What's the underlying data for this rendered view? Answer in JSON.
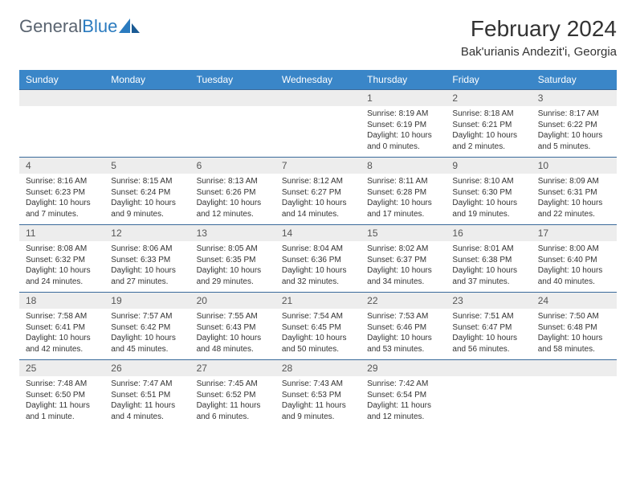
{
  "logo": {
    "text_gray": "General",
    "text_blue": "Blue"
  },
  "title": "February 2024",
  "location": "Bak'urianis Andezit'i, Georgia",
  "weekdays": [
    "Sunday",
    "Monday",
    "Tuesday",
    "Wednesday",
    "Thursday",
    "Friday",
    "Saturday"
  ],
  "colors": {
    "header_bg": "#3a86c8",
    "header_text": "#ffffff",
    "daynum_bg": "#ededed",
    "week_border": "#3a6a9a",
    "logo_gray": "#5a6470",
    "logo_blue": "#2b7bbf"
  },
  "weeks": [
    [
      {
        "num": "",
        "lines": []
      },
      {
        "num": "",
        "lines": []
      },
      {
        "num": "",
        "lines": []
      },
      {
        "num": "",
        "lines": []
      },
      {
        "num": "1",
        "lines": [
          "Sunrise: 8:19 AM",
          "Sunset: 6:19 PM",
          "Daylight: 10 hours",
          "and 0 minutes."
        ]
      },
      {
        "num": "2",
        "lines": [
          "Sunrise: 8:18 AM",
          "Sunset: 6:21 PM",
          "Daylight: 10 hours",
          "and 2 minutes."
        ]
      },
      {
        "num": "3",
        "lines": [
          "Sunrise: 8:17 AM",
          "Sunset: 6:22 PM",
          "Daylight: 10 hours",
          "and 5 minutes."
        ]
      }
    ],
    [
      {
        "num": "4",
        "lines": [
          "Sunrise: 8:16 AM",
          "Sunset: 6:23 PM",
          "Daylight: 10 hours",
          "and 7 minutes."
        ]
      },
      {
        "num": "5",
        "lines": [
          "Sunrise: 8:15 AM",
          "Sunset: 6:24 PM",
          "Daylight: 10 hours",
          "and 9 minutes."
        ]
      },
      {
        "num": "6",
        "lines": [
          "Sunrise: 8:13 AM",
          "Sunset: 6:26 PM",
          "Daylight: 10 hours",
          "and 12 minutes."
        ]
      },
      {
        "num": "7",
        "lines": [
          "Sunrise: 8:12 AM",
          "Sunset: 6:27 PM",
          "Daylight: 10 hours",
          "and 14 minutes."
        ]
      },
      {
        "num": "8",
        "lines": [
          "Sunrise: 8:11 AM",
          "Sunset: 6:28 PM",
          "Daylight: 10 hours",
          "and 17 minutes."
        ]
      },
      {
        "num": "9",
        "lines": [
          "Sunrise: 8:10 AM",
          "Sunset: 6:30 PM",
          "Daylight: 10 hours",
          "and 19 minutes."
        ]
      },
      {
        "num": "10",
        "lines": [
          "Sunrise: 8:09 AM",
          "Sunset: 6:31 PM",
          "Daylight: 10 hours",
          "and 22 minutes."
        ]
      }
    ],
    [
      {
        "num": "11",
        "lines": [
          "Sunrise: 8:08 AM",
          "Sunset: 6:32 PM",
          "Daylight: 10 hours",
          "and 24 minutes."
        ]
      },
      {
        "num": "12",
        "lines": [
          "Sunrise: 8:06 AM",
          "Sunset: 6:33 PM",
          "Daylight: 10 hours",
          "and 27 minutes."
        ]
      },
      {
        "num": "13",
        "lines": [
          "Sunrise: 8:05 AM",
          "Sunset: 6:35 PM",
          "Daylight: 10 hours",
          "and 29 minutes."
        ]
      },
      {
        "num": "14",
        "lines": [
          "Sunrise: 8:04 AM",
          "Sunset: 6:36 PM",
          "Daylight: 10 hours",
          "and 32 minutes."
        ]
      },
      {
        "num": "15",
        "lines": [
          "Sunrise: 8:02 AM",
          "Sunset: 6:37 PM",
          "Daylight: 10 hours",
          "and 34 minutes."
        ]
      },
      {
        "num": "16",
        "lines": [
          "Sunrise: 8:01 AM",
          "Sunset: 6:38 PM",
          "Daylight: 10 hours",
          "and 37 minutes."
        ]
      },
      {
        "num": "17",
        "lines": [
          "Sunrise: 8:00 AM",
          "Sunset: 6:40 PM",
          "Daylight: 10 hours",
          "and 40 minutes."
        ]
      }
    ],
    [
      {
        "num": "18",
        "lines": [
          "Sunrise: 7:58 AM",
          "Sunset: 6:41 PM",
          "Daylight: 10 hours",
          "and 42 minutes."
        ]
      },
      {
        "num": "19",
        "lines": [
          "Sunrise: 7:57 AM",
          "Sunset: 6:42 PM",
          "Daylight: 10 hours",
          "and 45 minutes."
        ]
      },
      {
        "num": "20",
        "lines": [
          "Sunrise: 7:55 AM",
          "Sunset: 6:43 PM",
          "Daylight: 10 hours",
          "and 48 minutes."
        ]
      },
      {
        "num": "21",
        "lines": [
          "Sunrise: 7:54 AM",
          "Sunset: 6:45 PM",
          "Daylight: 10 hours",
          "and 50 minutes."
        ]
      },
      {
        "num": "22",
        "lines": [
          "Sunrise: 7:53 AM",
          "Sunset: 6:46 PM",
          "Daylight: 10 hours",
          "and 53 minutes."
        ]
      },
      {
        "num": "23",
        "lines": [
          "Sunrise: 7:51 AM",
          "Sunset: 6:47 PM",
          "Daylight: 10 hours",
          "and 56 minutes."
        ]
      },
      {
        "num": "24",
        "lines": [
          "Sunrise: 7:50 AM",
          "Sunset: 6:48 PM",
          "Daylight: 10 hours",
          "and 58 minutes."
        ]
      }
    ],
    [
      {
        "num": "25",
        "lines": [
          "Sunrise: 7:48 AM",
          "Sunset: 6:50 PM",
          "Daylight: 11 hours",
          "and 1 minute."
        ]
      },
      {
        "num": "26",
        "lines": [
          "Sunrise: 7:47 AM",
          "Sunset: 6:51 PM",
          "Daylight: 11 hours",
          "and 4 minutes."
        ]
      },
      {
        "num": "27",
        "lines": [
          "Sunrise: 7:45 AM",
          "Sunset: 6:52 PM",
          "Daylight: 11 hours",
          "and 6 minutes."
        ]
      },
      {
        "num": "28",
        "lines": [
          "Sunrise: 7:43 AM",
          "Sunset: 6:53 PM",
          "Daylight: 11 hours",
          "and 9 minutes."
        ]
      },
      {
        "num": "29",
        "lines": [
          "Sunrise: 7:42 AM",
          "Sunset: 6:54 PM",
          "Daylight: 11 hours",
          "and 12 minutes."
        ]
      },
      {
        "num": "",
        "lines": []
      },
      {
        "num": "",
        "lines": []
      }
    ]
  ]
}
